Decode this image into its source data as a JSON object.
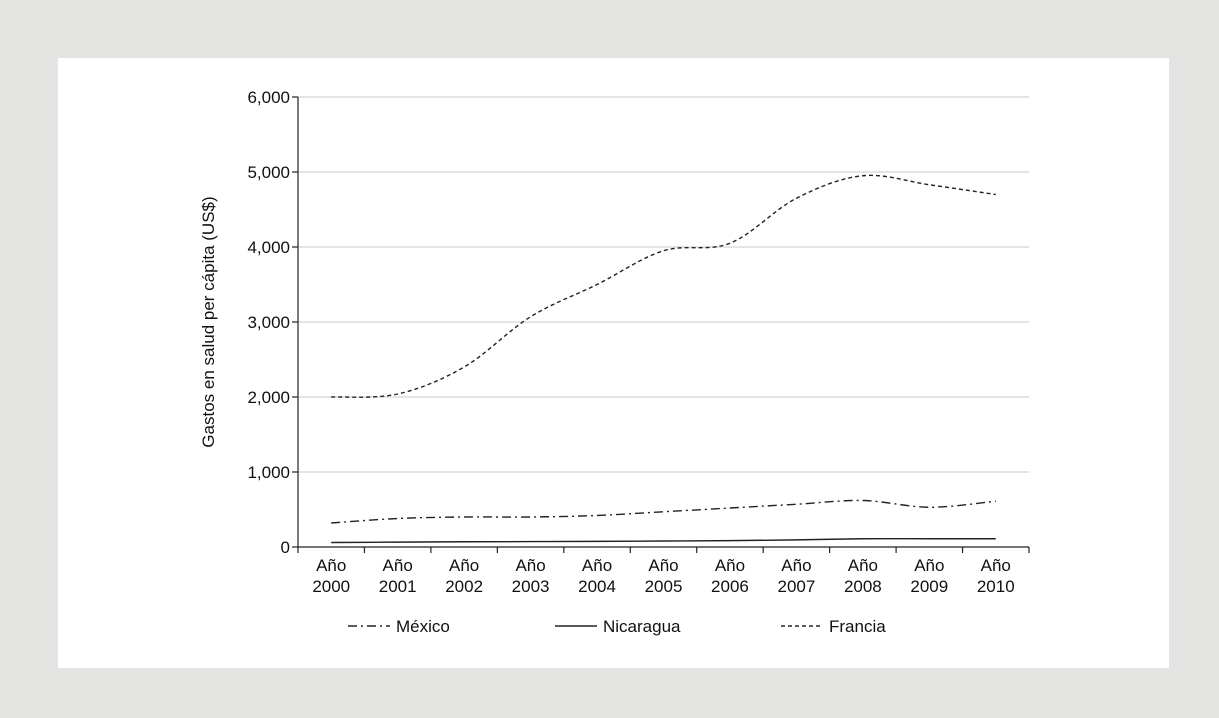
{
  "chart_data": {
    "type": "line",
    "ylabel": "Gastos en salud per cápita (US$)",
    "xlabel": "",
    "ylim": [
      0,
      6000
    ],
    "yticks": [
      0,
      1000,
      2000,
      3000,
      4000,
      5000,
      6000
    ],
    "ytick_labels": [
      "0",
      "1,000",
      "2,000",
      "3,000",
      "4,000",
      "5,000",
      "6,000"
    ],
    "categories": [
      [
        "Año",
        "2000"
      ],
      [
        "Año",
        "2001"
      ],
      [
        "Año",
        "2002"
      ],
      [
        "Año",
        "2003"
      ],
      [
        "Año",
        "2004"
      ],
      [
        "Año",
        "2005"
      ],
      [
        "Año",
        "2006"
      ],
      [
        "Año",
        "2007"
      ],
      [
        "Año",
        "2008"
      ],
      [
        "Año",
        "2009"
      ],
      [
        "Año",
        "2010"
      ]
    ],
    "grid": true,
    "legend_position": "bottom",
    "series": [
      {
        "name": "México",
        "style": "dash-dot",
        "color": "#222222",
        "values": [
          320,
          380,
          400,
          400,
          420,
          470,
          520,
          570,
          620,
          530,
          610
        ]
      },
      {
        "name": "Nicaragua",
        "style": "solid",
        "color": "#222222",
        "values": [
          60,
          65,
          70,
          72,
          75,
          80,
          85,
          95,
          110,
          110,
          110
        ]
      },
      {
        "name": "Francia",
        "style": "dashed",
        "color": "#222222",
        "values": [
          2000,
          2040,
          2400,
          3070,
          3500,
          3950,
          4050,
          4650,
          4950,
          4830,
          4700
        ]
      }
    ]
  }
}
